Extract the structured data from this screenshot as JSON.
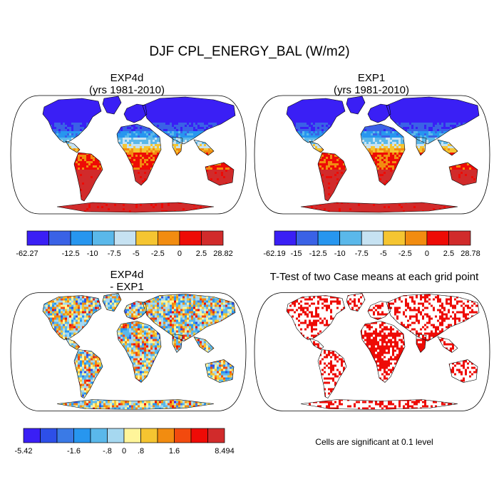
{
  "figure": {
    "title": "DJF CPL_ENERGY_BAL (W/m2)",
    "note": "Cells are significant at 0.1 level"
  },
  "chart_data": [
    {
      "type": "heatmap",
      "panel": "top-left",
      "title": "EXP4d",
      "subtitle": "(yrs 1981-2010)",
      "variable": "CPL_ENERGY_BAL",
      "units": "W/m2",
      "colorbar": {
        "labels": [
          "-62.27",
          "-12.5",
          "-10",
          "-7.5",
          "-5",
          "-2.5",
          "0",
          "2.5",
          "28.82"
        ],
        "bins": 9,
        "min": -62.27,
        "max": 28.82,
        "colors": [
          "#3a1ff5",
          "#3a62e6",
          "#2796ef",
          "#5ab8ea",
          "#c6e2f2",
          "#f5c531",
          "#f28c10",
          "#ee0b06",
          "#d12b2b"
        ]
      }
    },
    {
      "type": "heatmap",
      "panel": "top-right",
      "title": "EXP1",
      "subtitle": "(yrs 1981-2010)",
      "variable": "CPL_ENERGY_BAL",
      "units": "W/m2",
      "colorbar": {
        "labels": [
          "-62.19",
          "-15",
          "-12.5",
          "-10",
          "-7.5",
          "-5",
          "-2.5",
          "0",
          "2.5",
          "28.78"
        ],
        "bins": 9,
        "min": -62.19,
        "max": 28.78,
        "colors": [
          "#3a1ff5",
          "#3a62e6",
          "#2796ef",
          "#5ab8ea",
          "#c6e2f2",
          "#f5c531",
          "#f28c10",
          "#ee0b06",
          "#d12b2b"
        ]
      }
    },
    {
      "type": "heatmap",
      "panel": "bottom-left",
      "title": "EXP4d",
      "subtitle": "- EXP1",
      "variable": "CPL_ENERGY_BAL difference",
      "units": "W/m2",
      "colorbar": {
        "labels": [
          "-5.42",
          "-1.6",
          "-.8",
          "0",
          ".8",
          "1.6",
          "8.494"
        ],
        "bins": 12,
        "min": -5.42,
        "max": 8.494,
        "colors": [
          "#3a1ff5",
          "#2d4fe8",
          "#3a7ae6",
          "#2796ef",
          "#5ab8ea",
          "#a6d8f0",
          "#fff59a",
          "#f5c531",
          "#f28c10",
          "#f24a0e",
          "#ee0b06",
          "#d12b2b"
        ]
      }
    },
    {
      "type": "heatmap",
      "panel": "bottom-right",
      "title": "T-Test of two Case means at each grid point",
      "colors": {
        "significant": "#ee0b06",
        "land": "#ffffff"
      }
    }
  ],
  "colors": {
    "outline": "#000000",
    "land": "#ffffff",
    "ocean": "#ffffff"
  }
}
